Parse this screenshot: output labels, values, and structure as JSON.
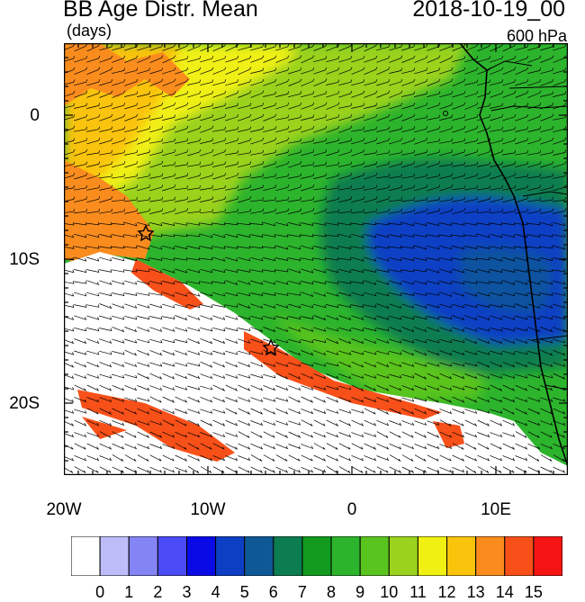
{
  "header": {
    "title": "BB Age Distr. Mean",
    "units": "(days)",
    "date": "2018-10-19_00",
    "level": "600 hPa"
  },
  "map": {
    "lat_ticks": [
      "0",
      "10S",
      "20S"
    ],
    "lon_ticks": [
      "20W",
      "10W",
      "0",
      "10E"
    ],
    "markers": [
      "star-marker",
      "star-marker"
    ]
  },
  "colorbar": {
    "labels": [
      "0",
      "1",
      "2",
      "3",
      "4",
      "5",
      "6",
      "7",
      "8",
      "9",
      "10",
      "11",
      "12",
      "13",
      "14",
      "15"
    ],
    "colors": [
      "#ffffff",
      "#bdbdfa",
      "#8484f5",
      "#4b4bf7",
      "#0a0ae6",
      "#0c3fc4",
      "#0e5896",
      "#0c7d50",
      "#129a1e",
      "#2db42d",
      "#5ac41e",
      "#9ad21e",
      "#f0f013",
      "#fac30c",
      "#fa8c1e",
      "#f85019",
      "#f51414"
    ]
  },
  "colors": {
    "background": "#ffffff",
    "coast": "#000000",
    "wind_barb": "#000000"
  }
}
